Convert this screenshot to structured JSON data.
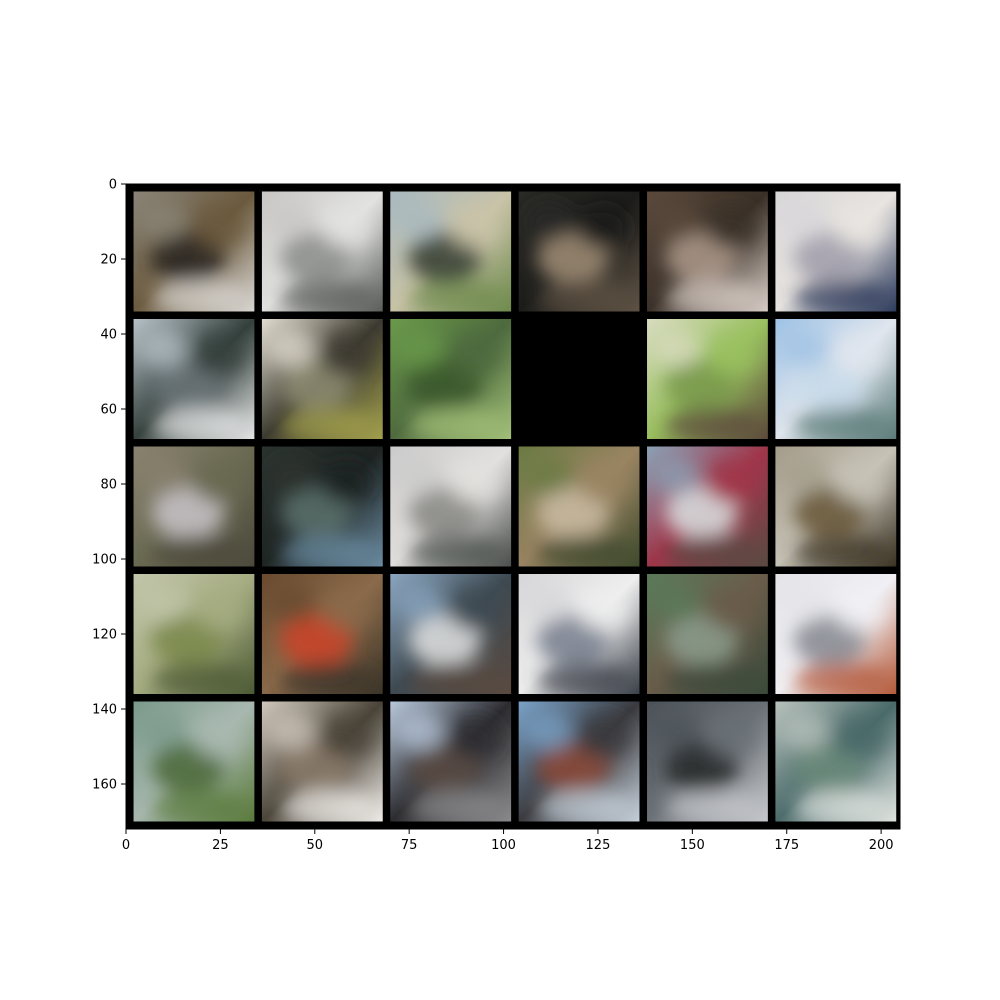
{
  "chart_data": {
    "type": "heatmap",
    "description_kind": "image-grid",
    "xlim": [
      0,
      205
    ],
    "ylim": [
      172,
      0
    ],
    "grid": false,
    "x_ticks": [
      {
        "value": 0,
        "label": "0"
      },
      {
        "value": 25,
        "label": "25"
      },
      {
        "value": 50,
        "label": "50"
      },
      {
        "value": 75,
        "label": "75"
      },
      {
        "value": 100,
        "label": "100"
      },
      {
        "value": 125,
        "label": "125"
      },
      {
        "value": 150,
        "label": "150"
      },
      {
        "value": 175,
        "label": "175"
      },
      {
        "value": 200,
        "label": "200"
      }
    ],
    "y_ticks": [
      {
        "value": 0,
        "label": "0"
      },
      {
        "value": 20,
        "label": "20"
      },
      {
        "value": 40,
        "label": "40"
      },
      {
        "value": 60,
        "label": "60"
      },
      {
        "value": 80,
        "label": "80"
      },
      {
        "value": 100,
        "label": "100"
      },
      {
        "value": 120,
        "label": "120"
      },
      {
        "value": 140,
        "label": "140"
      },
      {
        "value": 160,
        "label": "160"
      }
    ],
    "tile_rows": 5,
    "tile_cols": 6,
    "tile_size": 32,
    "padding": 2,
    "background_color": "#000000",
    "tiles": [
      {
        "row": 0,
        "col": 0,
        "colors": [
          "#8a8478",
          "#2e2a24",
          "#d9d6d2",
          "#6b5a3e"
        ]
      },
      {
        "row": 0,
        "col": 1,
        "colors": [
          "#c7c6c4",
          "#8d8f8c",
          "#5a5d5a",
          "#e2e2e0"
        ]
      },
      {
        "row": 0,
        "col": 2,
        "colors": [
          "#a8b9c0",
          "#3a4236",
          "#6e8a4c",
          "#c9c3a8"
        ]
      },
      {
        "row": 0,
        "col": 3,
        "colors": [
          "#2a2a26",
          "#9b8a72",
          "#5e5244",
          "#1c1c1a"
        ]
      },
      {
        "row": 0,
        "col": 4,
        "colors": [
          "#5b4a3c",
          "#a89586",
          "#d8cdc6",
          "#3a3028"
        ]
      },
      {
        "row": 0,
        "col": 5,
        "colors": [
          "#d7d6d8",
          "#a2a0ac",
          "#2c3a5c",
          "#e8e4e0"
        ]
      },
      {
        "row": 1,
        "col": 0,
        "colors": [
          "#b6c2c8",
          "#6a7478",
          "#e4e6e6",
          "#34403c"
        ]
      },
      {
        "row": 1,
        "col": 1,
        "colors": [
          "#e2ddd0",
          "#8b8a70",
          "#a2a04c",
          "#3c3a30"
        ]
      },
      {
        "row": 1,
        "col": 2,
        "colors": [
          "#6a9a4a",
          "#3c5a2c",
          "#a2c078",
          "#4e6a3e"
        ]
      },
      {
        "row": 1,
        "col": 3,
        "colors": [
          "#000000",
          "#000000",
          "#000000",
          "#000000"
        ]
      },
      {
        "row": 1,
        "col": 4,
        "colors": [
          "#d8dcc0",
          "#7a9a4c",
          "#5c4a3a",
          "#9ac060"
        ]
      },
      {
        "row": 1,
        "col": 5,
        "colors": [
          "#9ec2e4",
          "#c8daea",
          "#5a7a78",
          "#e0e6ee"
        ]
      },
      {
        "row": 2,
        "col": 0,
        "colors": [
          "#8a8270",
          "#c4c0c4",
          "#4c4a3c",
          "#6a6a52"
        ]
      },
      {
        "row": 2,
        "col": 1,
        "colors": [
          "#2c3430",
          "#5a6e6a",
          "#6a8aa0",
          "#1e2422"
        ]
      },
      {
        "row": 2,
        "col": 2,
        "colors": [
          "#cbcaca",
          "#8a8a86",
          "#4a4e4c",
          "#e2e0de"
        ]
      },
      {
        "row": 2,
        "col": 3,
        "colors": [
          "#6a7a44",
          "#c6b8a0",
          "#3e4a2c",
          "#9a8462"
        ]
      },
      {
        "row": 2,
        "col": 4,
        "colors": [
          "#8aa2b6",
          "#d6dadc",
          "#5a4a42",
          "#a0364a"
        ]
      },
      {
        "row": 2,
        "col": 5,
        "colors": [
          "#a49c8a",
          "#6a5a3c",
          "#3a3224",
          "#c6c2b6"
        ]
      },
      {
        "row": 3,
        "col": 0,
        "colors": [
          "#c2c6aa",
          "#7c8a4c",
          "#4c5a34",
          "#a6ac82"
        ]
      },
      {
        "row": 3,
        "col": 1,
        "colors": [
          "#6a4a30",
          "#c8442a",
          "#3a3428",
          "#8a6a4a"
        ]
      },
      {
        "row": 3,
        "col": 2,
        "colors": [
          "#8aa6c0",
          "#dadcdc",
          "#5a4a40",
          "#3e4a52"
        ]
      },
      {
        "row": 3,
        "col": 3,
        "colors": [
          "#d6d6d8",
          "#7a8290",
          "#3a4048",
          "#eeeeee"
        ]
      },
      {
        "row": 3,
        "col": 4,
        "colors": [
          "#5a7a5a",
          "#8a9a8a",
          "#3a4a3a",
          "#6a5c4a"
        ]
      },
      {
        "row": 3,
        "col": 5,
        "colors": [
          "#e4e4e8",
          "#8a8c94",
          "#b45a3a",
          "#f0f0f4"
        ]
      },
      {
        "row": 4,
        "col": 0,
        "colors": [
          "#7a9a8a",
          "#4c6a3c",
          "#5a7a3a",
          "#a8b8b0"
        ]
      },
      {
        "row": 4,
        "col": 1,
        "colors": [
          "#d0c8bc",
          "#8a7a6a",
          "#f0ece8",
          "#4a4438"
        ]
      },
      {
        "row": 4,
        "col": 2,
        "colors": [
          "#b8c8dc",
          "#5a4a44",
          "#8a8a8c",
          "#2c2c30"
        ]
      },
      {
        "row": 4,
        "col": 3,
        "colors": [
          "#7aa2c8",
          "#8a4a3a",
          "#c6d0da",
          "#3a3a3e"
        ]
      },
      {
        "row": 4,
        "col": 4,
        "colors": [
          "#4c5258",
          "#2a2c2e",
          "#c6c8cc",
          "#6a7076"
        ]
      },
      {
        "row": 4,
        "col": 5,
        "colors": [
          "#b8c2bc",
          "#6a8a7a",
          "#e0e4e0",
          "#4a6a6a"
        ]
      }
    ]
  }
}
